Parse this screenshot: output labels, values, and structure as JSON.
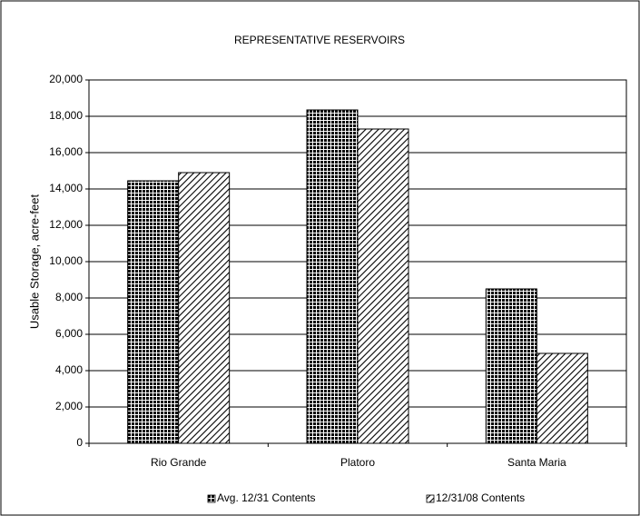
{
  "chart_data": {
    "type": "bar",
    "title": "REPRESENTATIVE RESERVOIRS",
    "y_label": "Usable Storage, acre-feet",
    "categories": [
      "Rio Grande",
      "Platoro",
      "Santa Maria"
    ],
    "series": [
      {
        "name": "Avg. 12/31 Contents",
        "color": "#000000",
        "pattern": "crosshatch",
        "values": [
          14450,
          18350,
          8500
        ]
      },
      {
        "name": "12/31/08 Contents",
        "color": "#000000",
        "pattern": "diagonal",
        "values": [
          14900,
          17300,
          4950
        ]
      }
    ],
    "ylim": [
      0,
      20000
    ],
    "yticks": [
      {
        "value": 0,
        "label": "0"
      },
      {
        "value": 2000,
        "label": "2,000"
      },
      {
        "value": 4000,
        "label": "4,000"
      },
      {
        "value": 6000,
        "label": "6,000"
      },
      {
        "value": 8000,
        "label": "8,000"
      },
      {
        "value": 10000,
        "label": "10,000"
      },
      {
        "value": 12000,
        "label": "12,000"
      },
      {
        "value": 14000,
        "label": "14,000"
      },
      {
        "value": 16000,
        "label": "16,000"
      },
      {
        "value": 18000,
        "label": "18,000"
      },
      {
        "value": 20000,
        "label": "20,000"
      }
    ],
    "grid": true,
    "legend": "bottom"
  }
}
